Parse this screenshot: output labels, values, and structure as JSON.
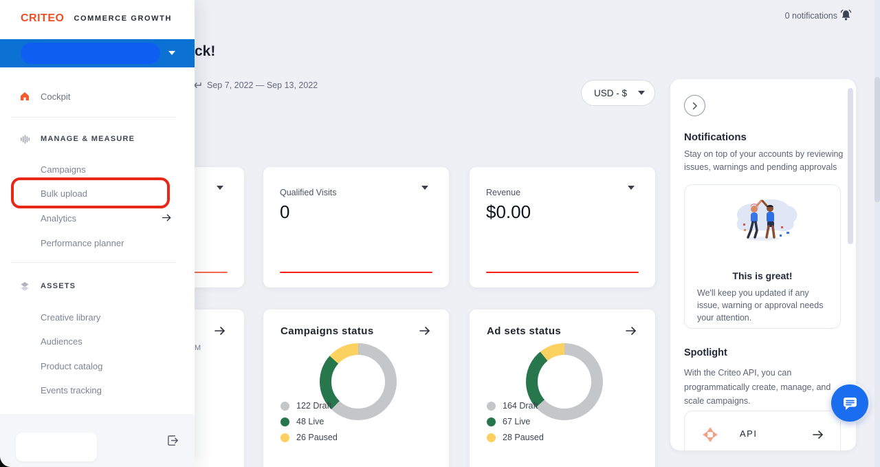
{
  "brand": {
    "logo_text": "CRITEO",
    "product_name": "COMMERCE GROWTH"
  },
  "topbar": {
    "notifications_label": "0 notifications"
  },
  "sidebar": {
    "cockpit_label": "Cockpit",
    "sections": [
      {
        "label": "MANAGE & MEASURE",
        "items": [
          {
            "label": "Campaigns"
          },
          {
            "label": "Bulk upload",
            "annotated": true
          },
          {
            "label": "Analytics",
            "has_arrow": true
          },
          {
            "label": "Performance planner"
          }
        ]
      },
      {
        "label": "ASSETS",
        "items": [
          {
            "label": "Creative library"
          },
          {
            "label": "Audiences"
          },
          {
            "label": "Product catalog"
          },
          {
            "label": "Events tracking"
          }
        ]
      }
    ]
  },
  "main": {
    "welcome_text_fragment": "ck!",
    "date_range": "Sep 7, 2022 — Sep 13, 2022",
    "currency_selector": "USD - $",
    "metric_cards": [
      {
        "title": "Qualified Visits",
        "value": "0"
      },
      {
        "title": "Revenue",
        "value": "$0.00"
      }
    ],
    "hidden_card_text_fragment": "M",
    "spark_color_hidden_card": "#f4694f",
    "spark_color": "#fb1f15"
  },
  "chart_data": [
    {
      "type": "pie",
      "title": "Campaigns status",
      "labels": [
        "Draft",
        "Live",
        "Paused"
      ],
      "values": [
        122,
        48,
        26
      ],
      "colors": [
        "#c5c6c8",
        "#27764c",
        "#fbd15f"
      ],
      "legend_position": "bottom-left",
      "donut": true
    },
    {
      "type": "pie",
      "title": "Ad sets status",
      "labels": [
        "Draft",
        "Live",
        "Paused"
      ],
      "values": [
        164,
        67,
        28
      ],
      "colors": [
        "#c5c6c8",
        "#27764c",
        "#fbd15f"
      ],
      "legend_position": "bottom-left",
      "donut": true
    }
  ],
  "panel": {
    "notifications_title": "Notifications",
    "notifications_desc": "Stay on top of your accounts by reviewing issues, warnings and pending approvals",
    "empty_state_title": "This is great!",
    "empty_state_desc": "We'll keep you updated if any issue, warning or approval needs your attention.",
    "spotlight_title": "Spotlight",
    "spotlight_desc": "With the Criteo API, you can programmatically create, manage, and scale campaigns.",
    "api_label": "API"
  }
}
